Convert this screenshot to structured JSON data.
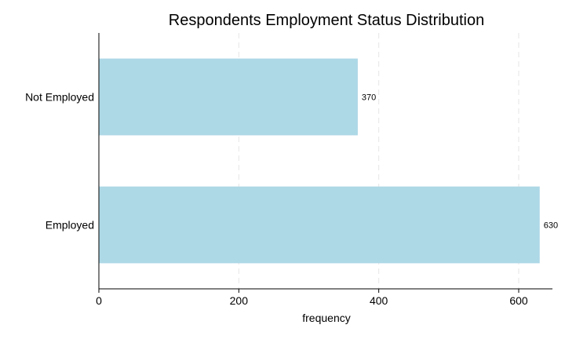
{
  "chart_data": {
    "type": "bar",
    "orientation": "horizontal",
    "title": "Respondents Employment Status Distribution",
    "xlabel": "frequency",
    "ylabel": "",
    "categories": [
      "Not Employed",
      "Employed"
    ],
    "values": [
      370,
      630
    ],
    "data_labels": [
      "370",
      "630"
    ],
    "xlim": [
      0,
      645
    ],
    "xticks": [
      0,
      200,
      400,
      600
    ],
    "xtick_labels": [
      "0",
      "200",
      "400",
      "600"
    ],
    "grid": "vertical dashed",
    "legend": "none",
    "bar_color": "#add8e6",
    "grid_color": "#e6e6e6",
    "axis_color": "#000000"
  }
}
